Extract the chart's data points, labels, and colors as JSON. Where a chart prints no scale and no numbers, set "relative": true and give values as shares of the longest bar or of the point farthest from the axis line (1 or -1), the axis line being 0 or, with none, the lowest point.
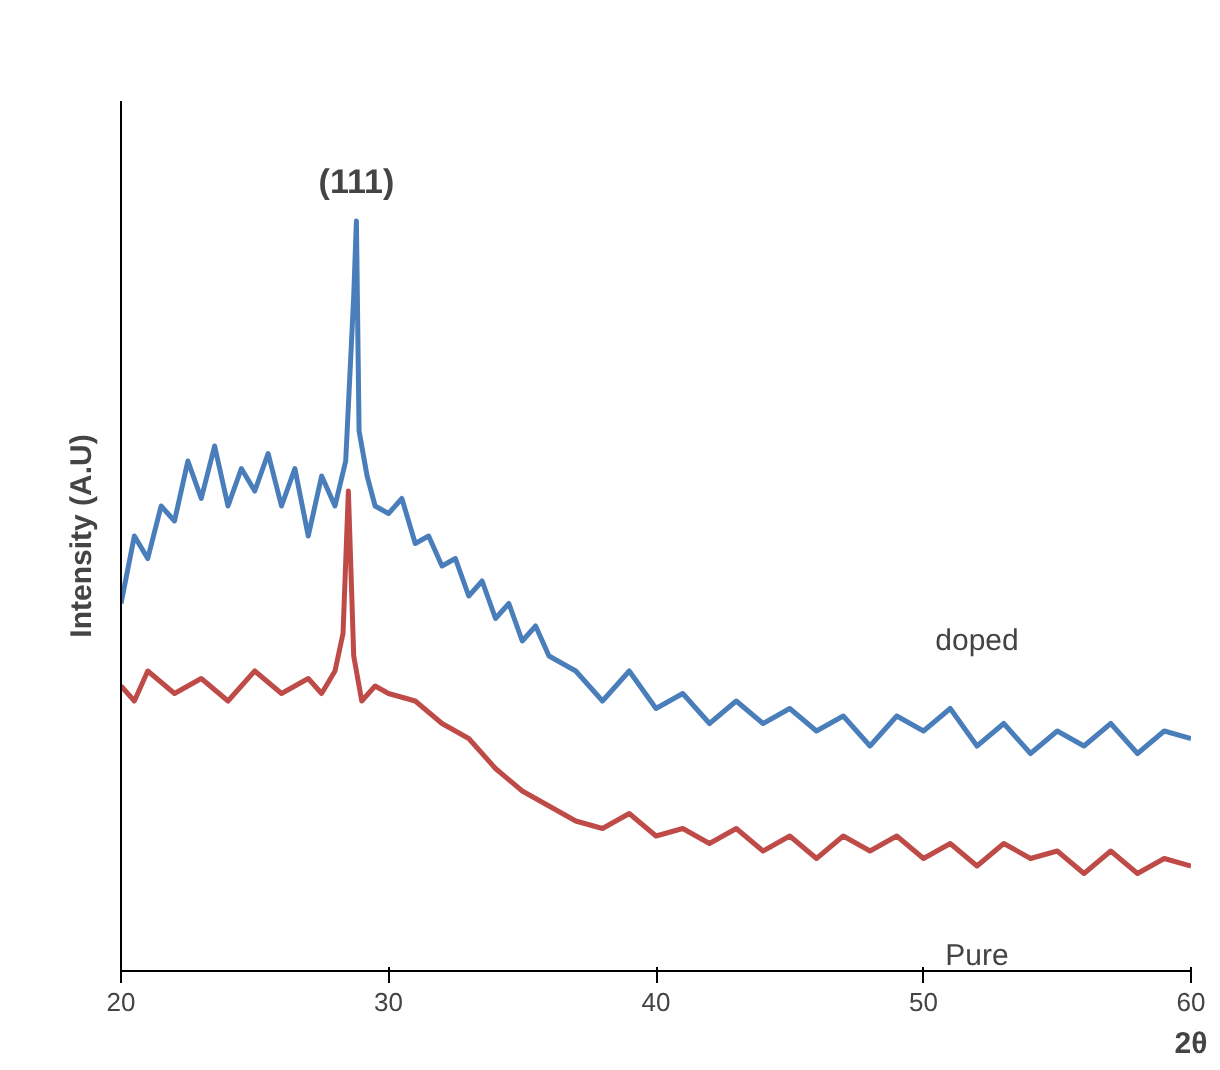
{
  "chart_data": {
    "type": "line",
    "relative": true,
    "xlabel": "2θ",
    "ylabel": "Intensity (A.U)",
    "xlim": [
      20,
      60
    ],
    "xticks": [
      20,
      30,
      40,
      50,
      60
    ],
    "annotations": [
      {
        "text": "(111)",
        "x": 28.8,
        "y": 1.0
      }
    ],
    "series": [
      {
        "name": "doped",
        "color": "#4a7ebb",
        "x": [
          20,
          20.5,
          21,
          21.5,
          22,
          22.5,
          23,
          23.5,
          24,
          24.5,
          25,
          25.5,
          26,
          26.5,
          27,
          27.5,
          28,
          28.4,
          28.7,
          28.8,
          28.9,
          29.2,
          29.5,
          30,
          30.5,
          31,
          31.5,
          32,
          32.5,
          33,
          33.5,
          34,
          34.5,
          35,
          35.5,
          36,
          37,
          38,
          39,
          40,
          41,
          42,
          43,
          44,
          45,
          46,
          47,
          48,
          49,
          50,
          51,
          52,
          53,
          54,
          55,
          56,
          57,
          58,
          59,
          60
        ],
        "values": [
          0.49,
          0.58,
          0.55,
          0.62,
          0.6,
          0.68,
          0.63,
          0.7,
          0.62,
          0.67,
          0.64,
          0.69,
          0.62,
          0.67,
          0.58,
          0.66,
          0.62,
          0.68,
          0.9,
          1.0,
          0.72,
          0.66,
          0.62,
          0.61,
          0.63,
          0.57,
          0.58,
          0.54,
          0.55,
          0.5,
          0.52,
          0.47,
          0.49,
          0.44,
          0.46,
          0.42,
          0.4,
          0.36,
          0.4,
          0.35,
          0.37,
          0.33,
          0.36,
          0.33,
          0.35,
          0.32,
          0.34,
          0.3,
          0.34,
          0.32,
          0.35,
          0.3,
          0.33,
          0.29,
          0.32,
          0.3,
          0.33,
          0.29,
          0.32,
          0.31
        ]
      },
      {
        "name": "Pure",
        "color": "#be4b48",
        "x": [
          20,
          20.5,
          21,
          22,
          23,
          24,
          25,
          26,
          27,
          27.5,
          28,
          28.3,
          28.5,
          28.7,
          29,
          29.5,
          30,
          31,
          32,
          33,
          34,
          35,
          36,
          37,
          38,
          39,
          40,
          41,
          42,
          43,
          44,
          45,
          46,
          47,
          48,
          49,
          50,
          51,
          52,
          53,
          54,
          55,
          56,
          57,
          58,
          59,
          60
        ],
        "values": [
          0.38,
          0.36,
          0.4,
          0.37,
          0.39,
          0.36,
          0.4,
          0.37,
          0.39,
          0.37,
          0.4,
          0.45,
          0.64,
          0.42,
          0.36,
          0.38,
          0.37,
          0.36,
          0.33,
          0.31,
          0.27,
          0.24,
          0.22,
          0.2,
          0.19,
          0.21,
          0.18,
          0.19,
          0.17,
          0.19,
          0.16,
          0.18,
          0.15,
          0.18,
          0.16,
          0.18,
          0.15,
          0.17,
          0.14,
          0.17,
          0.15,
          0.16,
          0.13,
          0.16,
          0.13,
          0.15,
          0.14
        ]
      }
    ]
  }
}
